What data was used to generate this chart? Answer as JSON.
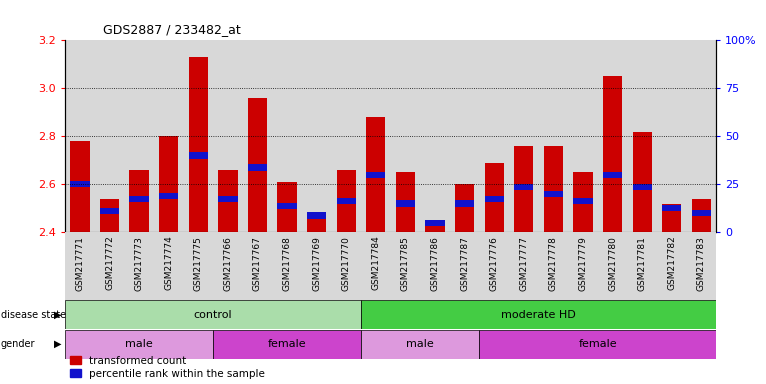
{
  "title": "GDS2887 / 233482_at",
  "samples": [
    "GSM217771",
    "GSM217772",
    "GSM217773",
    "GSM217774",
    "GSM217775",
    "GSM217766",
    "GSM217767",
    "GSM217768",
    "GSM217769",
    "GSM217770",
    "GSM217784",
    "GSM217785",
    "GSM217786",
    "GSM217787",
    "GSM217776",
    "GSM217777",
    "GSM217778",
    "GSM217779",
    "GSM217780",
    "GSM217781",
    "GSM217782",
    "GSM217783"
  ],
  "red_values": [
    2.78,
    2.54,
    2.66,
    2.8,
    3.13,
    2.66,
    2.96,
    2.61,
    2.48,
    2.66,
    2.88,
    2.65,
    2.44,
    2.6,
    2.69,
    2.76,
    2.76,
    2.65,
    3.05,
    2.82,
    2.52,
    2.54
  ],
  "blue_values": [
    2.6,
    2.49,
    2.54,
    2.55,
    2.72,
    2.54,
    2.67,
    2.51,
    2.47,
    2.53,
    2.64,
    2.52,
    2.44,
    2.52,
    2.54,
    2.59,
    2.56,
    2.53,
    2.64,
    2.59,
    2.5,
    2.48
  ],
  "ylim_left": [
    2.4,
    3.2
  ],
  "yticks_left": [
    2.4,
    2.6,
    2.8,
    3.0,
    3.2
  ],
  "yticks_right": [
    0,
    25,
    50,
    75,
    100
  ],
  "yticklabels_right": [
    "0",
    "25",
    "50",
    "75",
    "100%"
  ],
  "bar_color": "#cc0000",
  "blue_color": "#1111cc",
  "col_bg_color": "#d8d8d8",
  "chart_bg_color": "#ffffff",
  "disease_state_groups": [
    {
      "label": "control",
      "start": 0,
      "end": 10,
      "color": "#aaddaa"
    },
    {
      "label": "moderate HD",
      "start": 10,
      "end": 22,
      "color": "#44cc44"
    }
  ],
  "gender_groups": [
    {
      "label": "male",
      "start": 0,
      "end": 5,
      "color": "#dd99dd"
    },
    {
      "label": "female",
      "start": 5,
      "end": 10,
      "color": "#cc44cc"
    },
    {
      "label": "male",
      "start": 10,
      "end": 14,
      "color": "#dd99dd"
    },
    {
      "label": "female",
      "start": 14,
      "end": 22,
      "color": "#cc44cc"
    }
  ],
  "legend_items": [
    {
      "label": "transformed count",
      "color": "#cc0000"
    },
    {
      "label": "percentile rank within the sample",
      "color": "#1111cc"
    }
  ]
}
